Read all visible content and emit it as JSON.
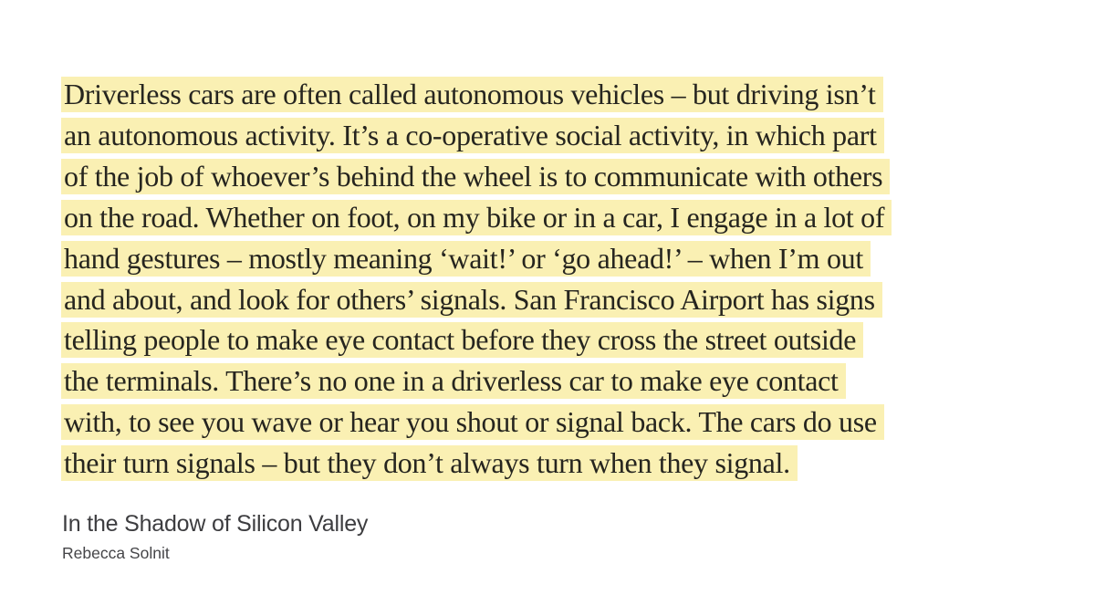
{
  "page": {
    "background_color": "#ffffff"
  },
  "quote": {
    "highlight_color": "#faf0b3",
    "text_color": "#26251f",
    "lines": [
      "Driverless cars are often called autonomous vehicles – but driving isn’t",
      "an autonomous activity. It’s a co-operative social activity, in which part",
      "of the job of whoever’s behind the wheel is to communicate with others",
      "on the road. Whether on foot, on my bike or in a car, I engage in a lot of",
      "hand gestures – mostly meaning ‘wait!’ or ‘go ahead!’ – when I’m out",
      "and about, and look for others’ signals. San Francisco Airport has signs",
      "telling people to make eye contact before they cross the street outside",
      "the terminals. There’s no one in a driverless car to make eye contact",
      "with, to see you wave or hear you shout or signal back. The cars do use",
      "their turn signals – but they don’t always turn when they signal."
    ]
  },
  "attribution": {
    "title": "In the Shadow of Silicon Valley",
    "author": "Rebecca Solnit",
    "title_color": "#3d3d40",
    "author_color": "#454548"
  }
}
